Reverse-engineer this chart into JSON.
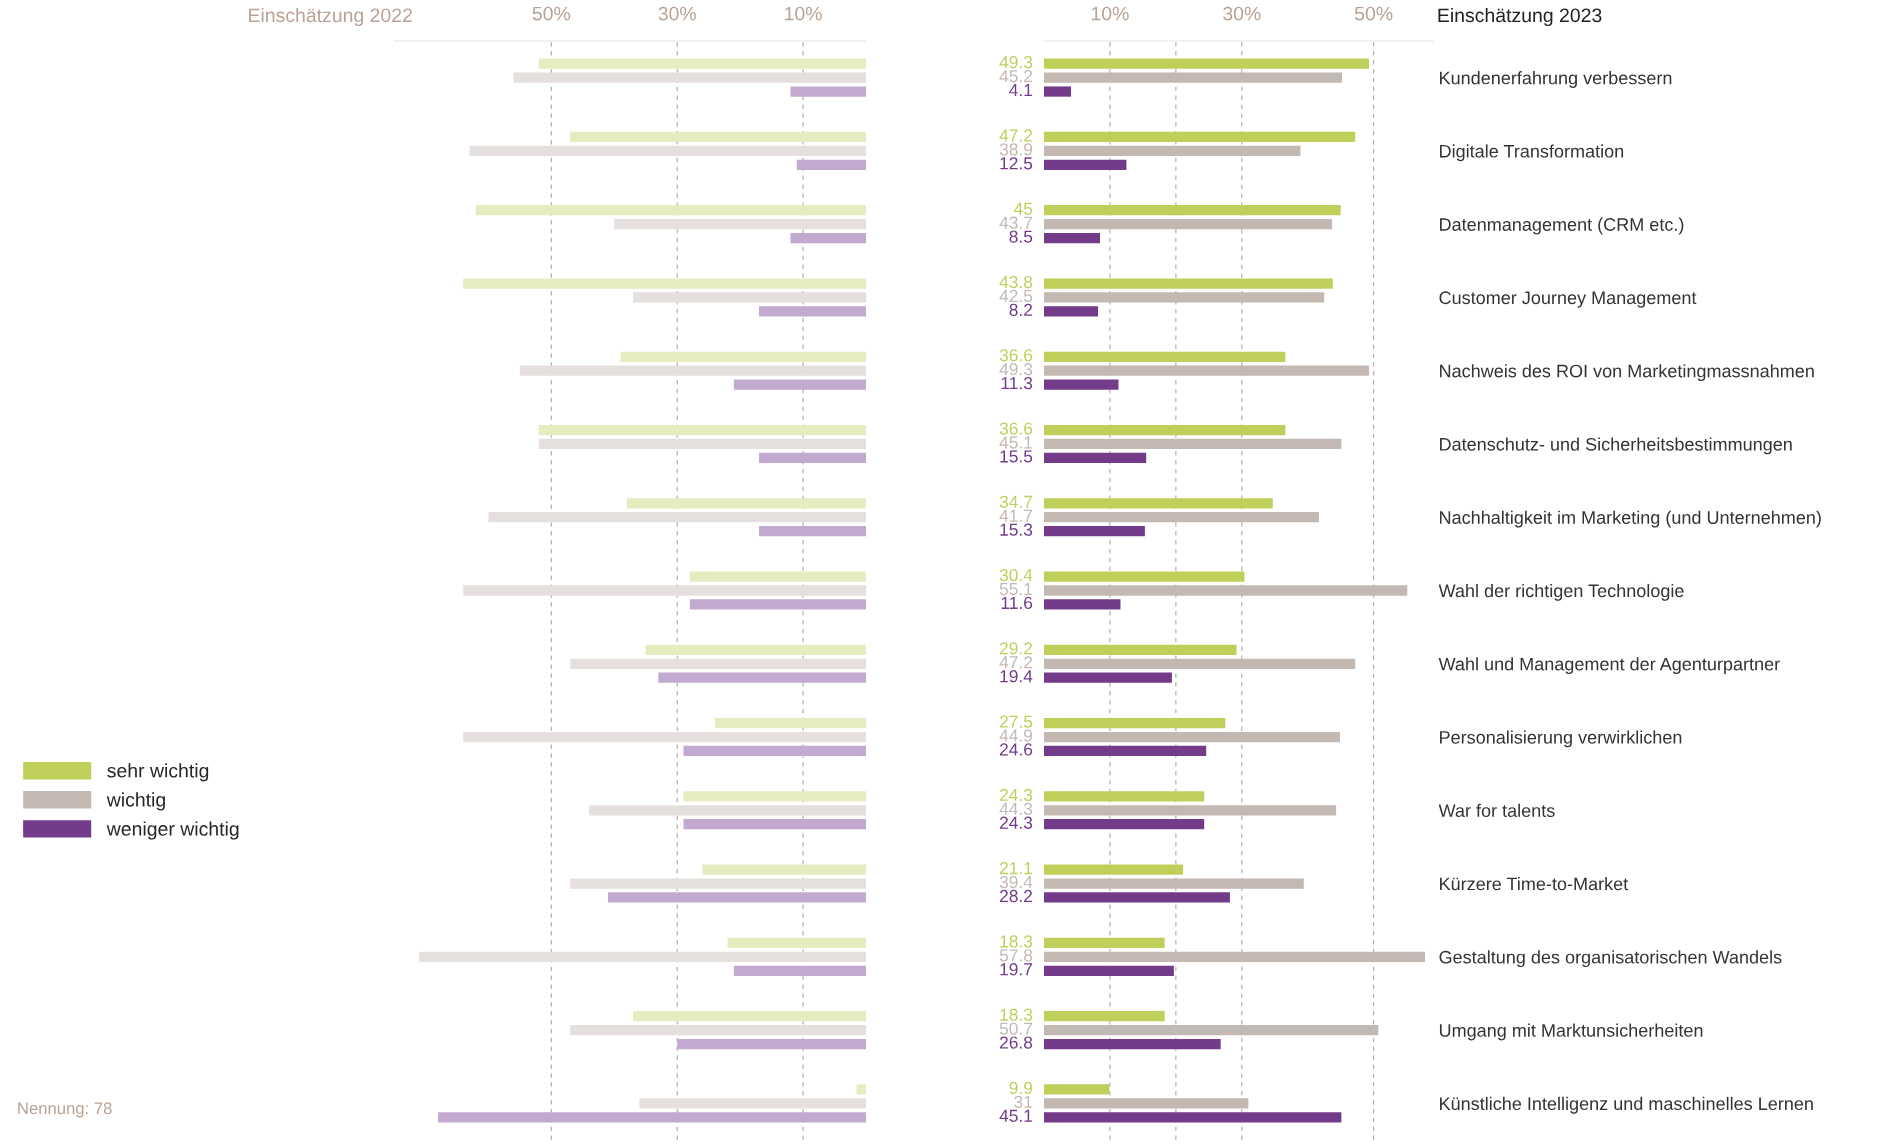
{
  "chart_data": [
    {
      "type": "bar",
      "orientation": "horizontal",
      "title": "Einschätzung 2022",
      "categories": [
        null,
        null,
        null,
        null,
        null,
        null,
        null,
        null,
        null,
        null,
        null,
        null,
        null,
        null,
        null
      ],
      "series": [
        {
          "color": "#e6ebc0",
          "values": [
            52,
            47,
            62,
            64,
            39,
            52,
            38,
            28,
            35,
            24,
            29,
            26,
            22,
            37,
            1.5
          ]
        },
        {
          "color": "#e5dfdd",
          "values": [
            56,
            63,
            40,
            37,
            55,
            52,
            60,
            64,
            47,
            64,
            44,
            47,
            71,
            47,
            36
          ]
        },
        {
          "color": "#c2a9d0",
          "values": [
            12,
            11,
            12,
            17,
            21,
            17,
            17,
            28,
            33,
            29,
            29,
            41,
            21,
            30,
            68
          ]
        }
      ],
      "xlim": [
        75,
        0
      ],
      "xticks": [
        {
          "value": 10,
          "label": "10%"
        },
        {
          "value": 30,
          "label": "30%"
        },
        {
          "value": 50,
          "label": "50%"
        }
      ],
      "grid": "x",
      "tick_labels": "x",
      "annotations": [
        "Nennung: 78"
      ]
    },
    {
      "type": "bar",
      "orientation": "horizontal",
      "title": "Einschätzung 2023",
      "categories": [
        "Kundenerfahrung verbessern",
        "Digitale Transformation",
        "Datenmanagement (CRM etc.)",
        "Customer Journey Management",
        "Nachweis des ROI von Marketingmassnahmen",
        "Datenschutz- und Sicherheitsbestimmungen",
        "Nachhaltigkeit im Marketing (und Unternehmen)",
        "Wahl der richtigen Technologie",
        "Wahl und Management der Agenturpartner",
        "Personalisierung verwirklichen",
        "War for talents",
        "Kürzere Time-to-Market",
        "Gestaltung des organisatorischen Wandels",
        "Umgang mit Marktunsicherheiten",
        "Künstliche Intelligenz und maschinelles Lernen"
      ],
      "series": [
        {
          "name": "sehr wichtig",
          "color": "#bfcf5a",
          "values": [
            49.3,
            47.2,
            45,
            43.8,
            36.6,
            36.6,
            34.7,
            30.4,
            29.2,
            27.5,
            24.3,
            21.1,
            18.3,
            18.3,
            9.9
          ]
        },
        {
          "name": "wichtig",
          "color": "#c4b8b2",
          "values": [
            45.2,
            38.9,
            43.7,
            42.5,
            49.3,
            45.1,
            41.7,
            55.1,
            47.2,
            44.9,
            44.3,
            39.4,
            57.8,
            50.7,
            31
          ]
        },
        {
          "name": "weniger wichtig",
          "color": "#733b8a",
          "values": [
            4.1,
            12.5,
            8.5,
            8.2,
            11.3,
            15.5,
            15.3,
            11.6,
            19.4,
            24.6,
            24.3,
            28.2,
            19.7,
            26.8,
            45.1
          ]
        }
      ],
      "xlim": [
        0,
        59
      ],
      "xticks": [
        {
          "value": 10,
          "label": "10%"
        },
        {
          "value": 20,
          "label": null
        },
        {
          "value": 30,
          "label": "30%"
        },
        {
          "value": 50,
          "label": "50%"
        }
      ],
      "grid": "x",
      "data_labels": true,
      "legend": "left"
    }
  ]
}
